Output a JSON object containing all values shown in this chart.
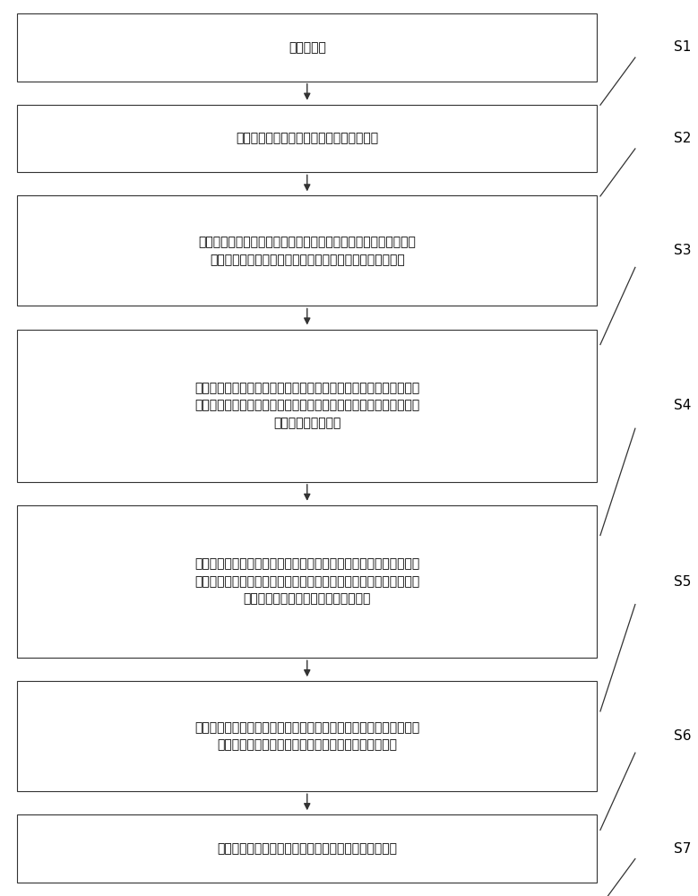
{
  "bg_color": "#ffffff",
  "box_edge_color": "#333333",
  "box_face_color": "#ffffff",
  "arrow_color": "#333333",
  "text_color": "#000000",
  "steps": [
    {
      "label": "S1",
      "text": "提供一载体",
      "lines": 1
    },
    {
      "label": "S2",
      "text": "采用引线键合工艺在所述载体表面金属引线",
      "lines": 1
    },
    {
      "label": "S3",
      "text": "将有源模块及无源模块设置于所述载体形成有所述金属引线的表面\n上，并在所述有源模块及所述无源模块表面形成金属连接柱",
      "lines": 2
    },
    {
      "label": "S4",
      "text": "使用塑封材料将所述金属引线、所述有源模块、所述无源模块及所述\n金属连接柱塑封成型，并去除部分所述塑封材料以裸露出所述金属引\n线及所述金属连接柱",
      "lines": 3
    },
    {
      "label": "S5",
      "text": "在所述封装材料表面形成再布线层，所述再布线层将所述金属引线、\n所述有源模块及所述无源模块电连接；所述有源模块、所述无源模块\n及所述再布线层共同构成供电传输系统",
      "lines": 3
    },
    {
      "label": "S6",
      "text": "提供用电芯片，将所述用电芯片设置于所述再布线层表面，所述用电\n芯片经由多个微凸块实现与所述低电压供电轨道的对接",
      "lines": 2
    },
    {
      "label": "S7",
      "text": "剥离所述载体，形成与所述金属引线相连接的焊料凸块",
      "lines": 1
    }
  ],
  "fig_width": 7.79,
  "fig_height": 10.0,
  "dpi": 100
}
